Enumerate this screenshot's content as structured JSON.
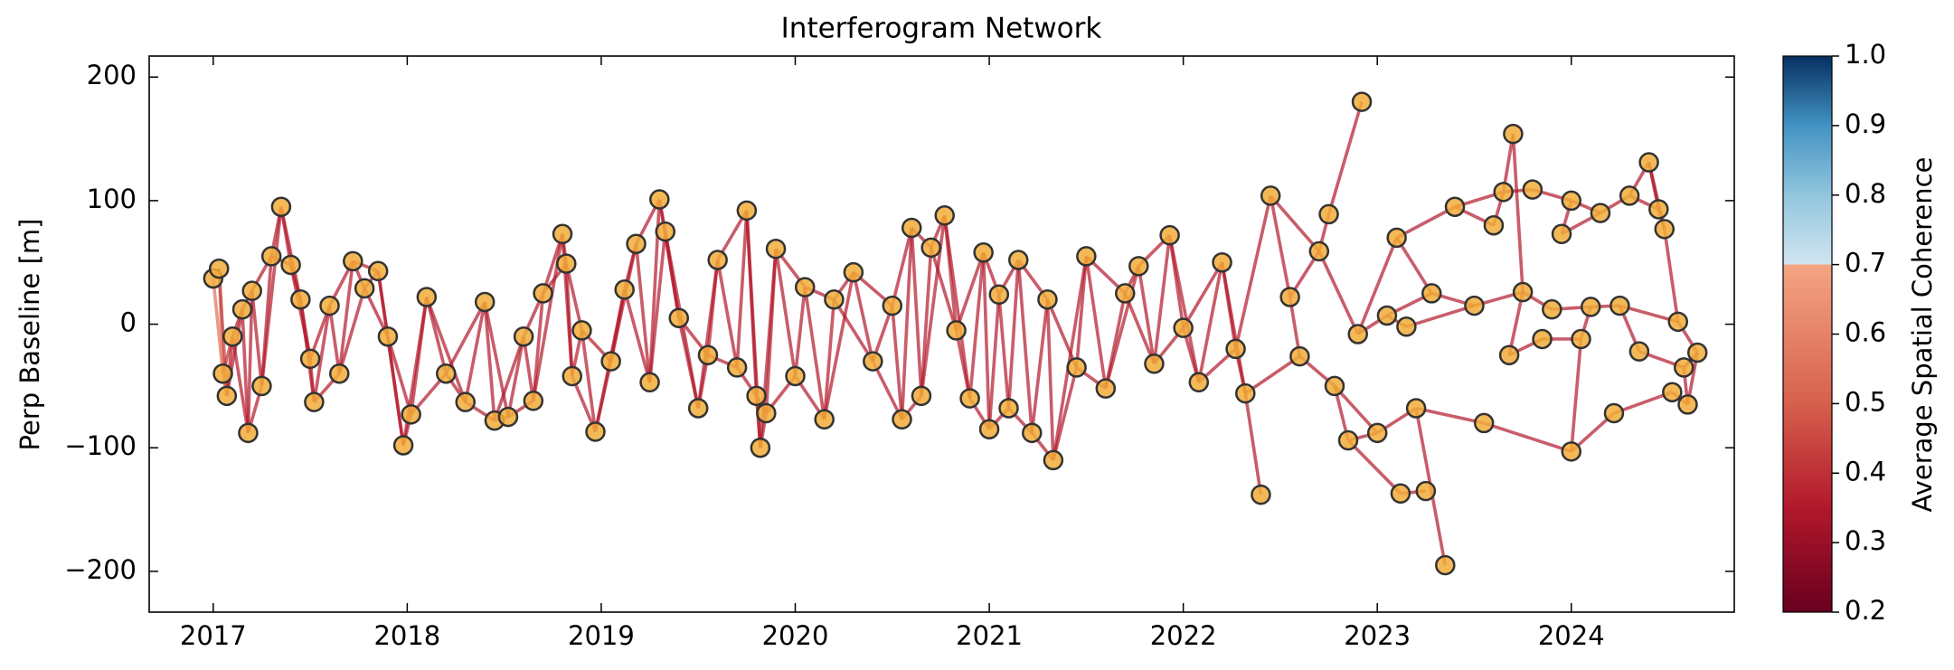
{
  "chart_data": {
    "type": "network",
    "title": "Interferogram Network",
    "ylabel": "Perp Baseline [m]",
    "xlim": [
      2016.67,
      2024.84
    ],
    "ylim": [
      -233,
      217
    ],
    "xticks": [
      2017,
      2018,
      2019,
      2020,
      2021,
      2022,
      2023,
      2024
    ],
    "yticks": [
      {
        "value": -200,
        "label": "−200"
      },
      {
        "value": -100,
        "label": "−100"
      },
      0,
      100,
      200
    ],
    "node_color": "#f2ad3a",
    "node_edgecolor": "#333333",
    "x": [
      2017.0,
      2017.03,
      2017.05,
      2017.07,
      2017.1,
      2017.15,
      2017.18,
      2017.2,
      2017.25,
      2017.3,
      2017.35,
      2017.4,
      2017.45,
      2017.5,
      2017.52,
      2017.6,
      2017.65,
      2017.72,
      2017.78,
      2017.85,
      2017.9,
      2017.98,
      2018.02,
      2018.1,
      2018.2,
      2018.3,
      2018.4,
      2018.45,
      2018.52,
      2018.6,
      2018.65,
      2018.7,
      2018.8,
      2018.82,
      2018.85,
      2018.9,
      2018.97,
      2019.05,
      2019.12,
      2019.18,
      2019.25,
      2019.3,
      2019.33,
      2019.4,
      2019.5,
      2019.55,
      2019.6,
      2019.7,
      2019.75,
      2019.8,
      2019.82,
      2019.85,
      2019.9,
      2020.0,
      2020.05,
      2020.15,
      2020.2,
      2020.3,
      2020.4,
      2020.5,
      2020.55,
      2020.6,
      2020.65,
      2020.7,
      2020.77,
      2020.83,
      2020.9,
      2020.97,
      2021.0,
      2021.05,
      2021.1,
      2021.15,
      2021.22,
      2021.3,
      2021.33,
      2021.45,
      2021.5,
      2021.6,
      2021.7,
      2021.77,
      2021.85,
      2021.93,
      2022.0,
      2022.08,
      2022.2,
      2022.27,
      2022.32,
      2022.4,
      2022.45,
      2022.55,
      2022.6,
      2022.7,
      2022.75,
      2022.78,
      2022.85,
      2022.9,
      2022.92,
      2023.0,
      2023.05,
      2023.1,
      2023.12,
      2023.15,
      2023.2,
      2023.25,
      2023.28,
      2023.35,
      2023.4,
      2023.5,
      2023.55,
      2023.6,
      2023.65,
      2023.7,
      2023.68,
      2023.75,
      2023.8,
      2023.85,
      2023.9,
      2023.95,
      2024.0,
      2024.0,
      2024.05,
      2024.1,
      2024.15,
      2024.22,
      2024.25,
      2024.3,
      2024.35,
      2024.4,
      2024.45,
      2024.48,
      2024.52,
      2024.55,
      2024.58,
      2024.6,
      2024.65
    ],
    "y": [
      37,
      45,
      -40,
      -58,
      -10,
      12,
      -88,
      27,
      -50,
      55,
      95,
      48,
      20,
      -28,
      -63,
      15,
      -40,
      51,
      29,
      43,
      -10,
      -98,
      -73,
      22,
      -40,
      -63,
      18,
      -78,
      -75,
      -10,
      -62,
      25,
      73,
      49,
      -42,
      -5,
      -87,
      -30,
      28,
      65,
      -47,
      101,
      75,
      5,
      -68,
      -25,
      52,
      -35,
      92,
      -58,
      -100,
      -72,
      61,
      -42,
      30,
      -77,
      20,
      42,
      -30,
      15,
      -77,
      78,
      -58,
      62,
      88,
      -5,
      -60,
      58,
      -85,
      24,
      -68,
      52,
      -88,
      20,
      -110,
      -35,
      55,
      -52,
      25,
      47,
      -32,
      72,
      -3,
      -47,
      50,
      -20,
      -56,
      -138,
      104,
      22,
      -26,
      59,
      89,
      -50,
      -94,
      -8,
      180,
      -88,
      7,
      70,
      -137,
      -2,
      -68,
      -135,
      25,
      -195,
      95,
      15,
      -80,
      80,
      107,
      154,
      -25,
      26,
      109,
      -12,
      12,
      73,
      100,
      -103,
      -12,
      14,
      90,
      -72,
      15,
      104,
      -22,
      131,
      93,
      77,
      -55,
      2,
      -35,
      -65,
      -23
    ],
    "edges": [
      [
        0,
        1,
        0.6
      ],
      [
        0,
        2,
        0.55
      ],
      [
        1,
        2,
        0.6
      ],
      [
        1,
        3,
        0.4
      ],
      [
        2,
        3,
        0.5
      ],
      [
        2,
        4,
        0.4
      ],
      [
        3,
        4,
        0.35
      ],
      [
        3,
        5,
        0.35
      ],
      [
        4,
        5,
        0.35
      ],
      [
        4,
        6,
        0.35
      ],
      [
        5,
        6,
        0.35
      ],
      [
        5,
        7,
        0.35
      ],
      [
        6,
        7,
        0.35
      ],
      [
        6,
        8,
        0.35
      ],
      [
        7,
        8,
        0.35
      ],
      [
        7,
        9,
        0.35
      ],
      [
        8,
        9,
        0.35
      ],
      [
        8,
        10,
        0.35
      ],
      [
        9,
        10,
        0.35
      ],
      [
        9,
        11,
        0.35
      ],
      [
        10,
        11,
        0.35
      ],
      [
        10,
        12,
        0.35
      ],
      [
        11,
        12,
        0.35
      ],
      [
        11,
        13,
        0.35
      ],
      [
        12,
        13,
        0.35
      ],
      [
        12,
        14,
        0.35
      ],
      [
        13,
        14,
        0.35
      ],
      [
        13,
        15,
        0.35
      ],
      [
        14,
        15,
        0.35
      ],
      [
        14,
        16,
        0.35
      ],
      [
        15,
        16,
        0.35
      ],
      [
        15,
        17,
        0.35
      ],
      [
        16,
        17,
        0.35
      ],
      [
        16,
        18,
        0.35
      ],
      [
        17,
        18,
        0.35
      ],
      [
        17,
        19,
        0.35
      ],
      [
        18,
        19,
        0.35
      ],
      [
        18,
        20,
        0.35
      ],
      [
        19,
        20,
        0.35
      ],
      [
        19,
        21,
        0.35
      ],
      [
        20,
        21,
        0.35
      ],
      [
        20,
        22,
        0.35
      ],
      [
        21,
        22,
        0.35
      ],
      [
        21,
        23,
        0.35
      ],
      [
        22,
        23,
        0.35
      ],
      [
        22,
        24,
        0.35
      ],
      [
        23,
        24,
        0.35
      ],
      [
        23,
        25,
        0.35
      ],
      [
        24,
        25,
        0.35
      ],
      [
        24,
        26,
        0.35
      ],
      [
        25,
        26,
        0.35
      ],
      [
        25,
        27,
        0.35
      ],
      [
        26,
        27,
        0.35
      ],
      [
        26,
        28,
        0.35
      ],
      [
        27,
        28,
        0.35
      ],
      [
        27,
        29,
        0.35
      ],
      [
        28,
        29,
        0.35
      ],
      [
        28,
        30,
        0.35
      ],
      [
        29,
        30,
        0.35
      ],
      [
        29,
        31,
        0.35
      ],
      [
        30,
        31,
        0.35
      ],
      [
        30,
        32,
        0.35
      ],
      [
        31,
        32,
        0.35
      ],
      [
        31,
        33,
        0.35
      ],
      [
        32,
        33,
        0.35
      ],
      [
        32,
        34,
        0.35
      ],
      [
        33,
        34,
        0.35
      ],
      [
        33,
        35,
        0.35
      ],
      [
        34,
        35,
        0.35
      ],
      [
        34,
        36,
        0.35
      ],
      [
        35,
        36,
        0.35
      ],
      [
        35,
        37,
        0.35
      ],
      [
        36,
        37,
        0.35
      ],
      [
        36,
        38,
        0.35
      ],
      [
        37,
        38,
        0.35
      ],
      [
        37,
        39,
        0.35
      ],
      [
        38,
        39,
        0.35
      ],
      [
        38,
        40,
        0.35
      ],
      [
        39,
        40,
        0.35
      ],
      [
        39,
        41,
        0.35
      ],
      [
        40,
        41,
        0.35
      ],
      [
        40,
        42,
        0.35
      ],
      [
        41,
        42,
        0.35
      ],
      [
        41,
        43,
        0.35
      ],
      [
        42,
        43,
        0.35
      ],
      [
        42,
        44,
        0.35
      ],
      [
        43,
        44,
        0.35
      ],
      [
        43,
        45,
        0.35
      ],
      [
        44,
        45,
        0.35
      ],
      [
        44,
        46,
        0.35
      ],
      [
        45,
        46,
        0.35
      ],
      [
        45,
        47,
        0.35
      ],
      [
        46,
        47,
        0.35
      ],
      [
        46,
        48,
        0.35
      ],
      [
        47,
        48,
        0.35
      ],
      [
        47,
        49,
        0.35
      ],
      [
        48,
        49,
        0.35
      ],
      [
        48,
        50,
        0.35
      ],
      [
        49,
        50,
        0.35
      ],
      [
        49,
        51,
        0.35
      ],
      [
        50,
        51,
        0.35
      ],
      [
        50,
        52,
        0.35
      ],
      [
        51,
        52,
        0.35
      ],
      [
        51,
        53,
        0.35
      ],
      [
        52,
        53,
        0.35
      ],
      [
        52,
        54,
        0.35
      ],
      [
        53,
        54,
        0.35
      ],
      [
        53,
        55,
        0.35
      ],
      [
        54,
        55,
        0.35
      ],
      [
        54,
        56,
        0.35
      ],
      [
        55,
        56,
        0.35
      ],
      [
        55,
        57,
        0.35
      ],
      [
        56,
        57,
        0.35
      ],
      [
        56,
        58,
        0.35
      ],
      [
        57,
        58,
        0.35
      ],
      [
        57,
        59,
        0.35
      ],
      [
        58,
        59,
        0.35
      ],
      [
        58,
        60,
        0.35
      ],
      [
        59,
        60,
        0.35
      ],
      [
        59,
        61,
        0.35
      ],
      [
        60,
        61,
        0.35
      ],
      [
        60,
        62,
        0.35
      ],
      [
        61,
        62,
        0.35
      ],
      [
        61,
        63,
        0.35
      ],
      [
        62,
        63,
        0.35
      ],
      [
        62,
        64,
        0.35
      ],
      [
        63,
        64,
        0.35
      ],
      [
        63,
        65,
        0.35
      ],
      [
        64,
        65,
        0.35
      ],
      [
        64,
        66,
        0.35
      ],
      [
        65,
        66,
        0.35
      ],
      [
        65,
        67,
        0.35
      ],
      [
        66,
        67,
        0.35
      ],
      [
        66,
        68,
        0.35
      ],
      [
        67,
        68,
        0.35
      ],
      [
        67,
        69,
        0.35
      ],
      [
        68,
        69,
        0.35
      ],
      [
        68,
        70,
        0.35
      ],
      [
        69,
        70,
        0.35
      ],
      [
        69,
        71,
        0.35
      ],
      [
        70,
        71,
        0.35
      ],
      [
        70,
        72,
        0.35
      ],
      [
        71,
        72,
        0.35
      ],
      [
        71,
        73,
        0.35
      ],
      [
        72,
        73,
        0.35
      ],
      [
        72,
        74,
        0.35
      ],
      [
        73,
        74,
        0.35
      ],
      [
        73,
        75,
        0.35
      ],
      [
        74,
        75,
        0.35
      ],
      [
        74,
        76,
        0.35
      ],
      [
        75,
        76,
        0.35
      ],
      [
        75,
        77,
        0.35
      ],
      [
        76,
        77,
        0.35
      ],
      [
        76,
        78,
        0.35
      ],
      [
        77,
        78,
        0.35
      ],
      [
        77,
        79,
        0.35
      ],
      [
        78,
        79,
        0.35
      ],
      [
        78,
        80,
        0.35
      ],
      [
        79,
        80,
        0.35
      ],
      [
        79,
        81,
        0.35
      ],
      [
        80,
        81,
        0.35
      ],
      [
        80,
        82,
        0.35
      ],
      [
        81,
        82,
        0.35
      ],
      [
        81,
        83,
        0.35
      ],
      [
        82,
        83,
        0.35
      ],
      [
        82,
        84,
        0.35
      ],
      [
        83,
        84,
        0.35
      ],
      [
        83,
        85,
        0.35
      ],
      [
        84,
        85,
        0.35
      ],
      [
        84,
        86,
        0.35
      ],
      [
        85,
        86,
        0.35
      ],
      [
        85,
        88,
        0.35
      ],
      [
        86,
        87,
        0.35
      ],
      [
        86,
        90,
        0.35
      ],
      [
        88,
        89,
        0.35
      ],
      [
        88,
        91,
        0.35
      ],
      [
        89,
        90,
        0.35
      ],
      [
        89,
        91,
        0.35
      ],
      [
        90,
        93,
        0.35
      ],
      [
        91,
        92,
        0.35
      ],
      [
        91,
        95,
        0.35
      ],
      [
        92,
        96,
        0.35
      ],
      [
        93,
        94,
        0.35
      ],
      [
        93,
        97,
        0.35
      ],
      [
        94,
        97,
        0.35
      ],
      [
        94,
        100,
        0.35
      ],
      [
        95,
        98,
        0.35
      ],
      [
        95,
        99,
        0.35
      ],
      [
        97,
        102,
        0.35
      ],
      [
        98,
        101,
        0.35
      ],
      [
        98,
        104,
        0.35
      ],
      [
        99,
        104,
        0.35
      ],
      [
        99,
        106,
        0.35
      ],
      [
        100,
        103,
        0.35
      ],
      [
        101,
        107,
        0.35
      ],
      [
        102,
        108,
        0.35
      ],
      [
        102,
        105,
        0.35
      ],
      [
        104,
        107,
        0.35
      ],
      [
        106,
        109,
        0.35
      ],
      [
        106,
        110,
        0.35
      ],
      [
        107,
        113,
        0.35
      ],
      [
        108,
        119,
        0.35
      ],
      [
        109,
        110,
        0.35
      ],
      [
        110,
        111,
        0.35
      ],
      [
        110,
        114,
        0.35
      ],
      [
        111,
        113,
        0.35
      ],
      [
        112,
        113,
        0.35
      ],
      [
        112,
        115,
        0.35
      ],
      [
        113,
        116,
        0.35
      ],
      [
        114,
        118,
        0.35
      ],
      [
        115,
        120,
        0.35
      ],
      [
        116,
        121,
        0.35
      ],
      [
        117,
        118,
        0.35
      ],
      [
        117,
        122,
        0.35
      ],
      [
        118,
        122,
        0.35
      ],
      [
        119,
        123,
        0.35
      ],
      [
        119,
        120,
        0.35
      ],
      [
        120,
        121,
        0.35
      ],
      [
        121,
        124,
        0.35
      ],
      [
        122,
        125,
        0.35
      ],
      [
        123,
        130,
        0.35
      ],
      [
        124,
        126,
        0.35
      ],
      [
        124,
        131,
        0.35
      ],
      [
        125,
        127,
        0.35
      ],
      [
        125,
        128,
        0.35
      ],
      [
        126,
        132,
        0.35
      ],
      [
        127,
        128,
        0.3
      ],
      [
        127,
        129,
        0.35
      ],
      [
        128,
        129,
        0.35
      ],
      [
        129,
        131,
        0.35
      ],
      [
        130,
        133,
        0.35
      ],
      [
        131,
        134,
        0.35
      ],
      [
        132,
        133,
        0.35
      ],
      [
        132,
        134,
        0.35
      ],
      [
        133,
        134,
        0.35
      ]
    ],
    "colorbar": {
      "label": "Average Spatial Coherence",
      "lim": [
        0.2,
        1.0
      ],
      "ticks": [
        0.2,
        0.3,
        0.4,
        0.5,
        0.6,
        0.7,
        0.8,
        0.9,
        {
          "value": 1,
          "label": "1.0"
        }
      ],
      "stops": [
        [
          0.2,
          "#67001f"
        ],
        [
          0.35,
          "#b2182b"
        ],
        [
          0.5,
          "#d6604d"
        ],
        [
          0.7,
          "#f4a582"
        ],
        [
          0.7,
          "#d1e5f0"
        ],
        [
          0.8,
          "#92c5de"
        ],
        [
          0.9,
          "#4393c3"
        ],
        [
          1.0,
          "#053061"
        ]
      ]
    }
  }
}
